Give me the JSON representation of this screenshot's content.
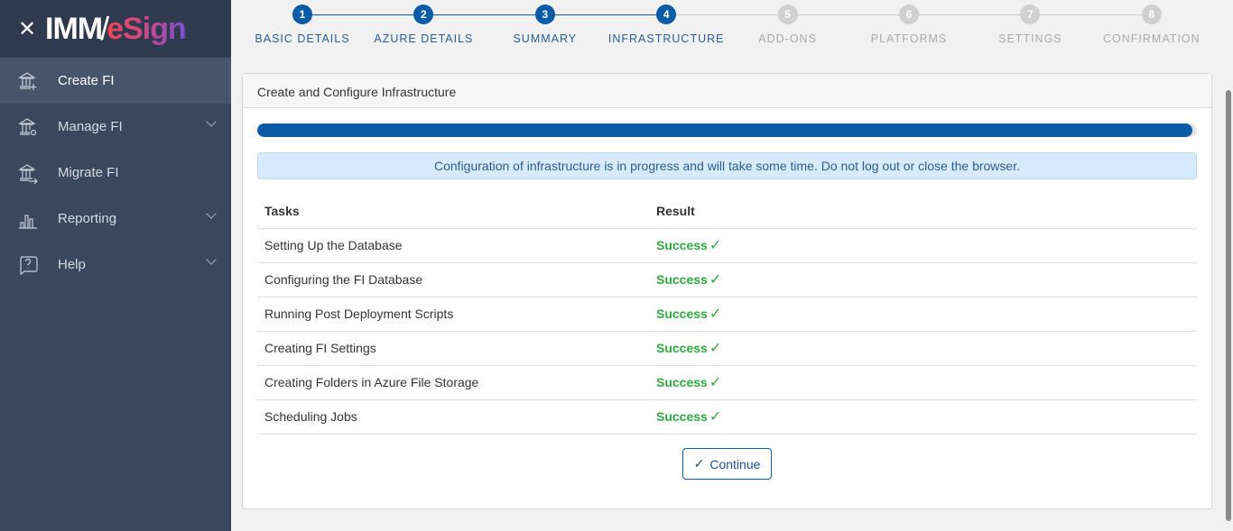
{
  "app": {
    "close_icon": "close-icon",
    "logo": "IMM/eSign"
  },
  "sidebar": {
    "items": [
      {
        "label": "Create FI",
        "icon": "bank-plus-icon",
        "active": true,
        "expandable": false
      },
      {
        "label": "Manage FI",
        "icon": "bank-gear-icon",
        "active": false,
        "expandable": true
      },
      {
        "label": "Migrate FI",
        "icon": "bank-arrow-icon",
        "active": false,
        "expandable": false
      },
      {
        "label": "Reporting",
        "icon": "bar-chart-icon",
        "active": false,
        "expandable": true
      },
      {
        "label": "Help",
        "icon": "help-bubble-icon",
        "active": false,
        "expandable": true
      }
    ]
  },
  "stepper": {
    "current": 4,
    "steps": [
      {
        "num": "1",
        "label": "BASIC DETAILS"
      },
      {
        "num": "2",
        "label": "AZURE DETAILS"
      },
      {
        "num": "3",
        "label": "SUMMARY"
      },
      {
        "num": "4",
        "label": "INFRASTRUCTURE"
      },
      {
        "num": "5",
        "label": "ADD-ONS"
      },
      {
        "num": "6",
        "label": "PLATFORMS"
      },
      {
        "num": "7",
        "label": "SETTINGS"
      },
      {
        "num": "8",
        "label": "CONFIRMATION"
      }
    ]
  },
  "card": {
    "title": "Create and Configure Infrastructure",
    "progress_percent": 99.5,
    "alert": "Configuration of infrastructure is in progress and will take some time. Do not log out or close the browser.",
    "table": {
      "headers": [
        "Tasks",
        "Result"
      ],
      "rows": [
        {
          "task": "Setting Up the Database",
          "result": "Success"
        },
        {
          "task": "Configuring the FI Database",
          "result": "Success"
        },
        {
          "task": "Running Post Deployment Scripts",
          "result": "Success"
        },
        {
          "task": "Creating FI Settings",
          "result": "Success"
        },
        {
          "task": "Creating Folders in Azure File Storage",
          "result": "Success"
        },
        {
          "task": "Scheduling Jobs",
          "result": "Success"
        }
      ]
    },
    "check_glyph": "✓",
    "continue_label": "Continue"
  },
  "colors": {
    "primary": "#0a5ca6",
    "success": "#2eaa3e",
    "sidebar": "#3b475c"
  }
}
